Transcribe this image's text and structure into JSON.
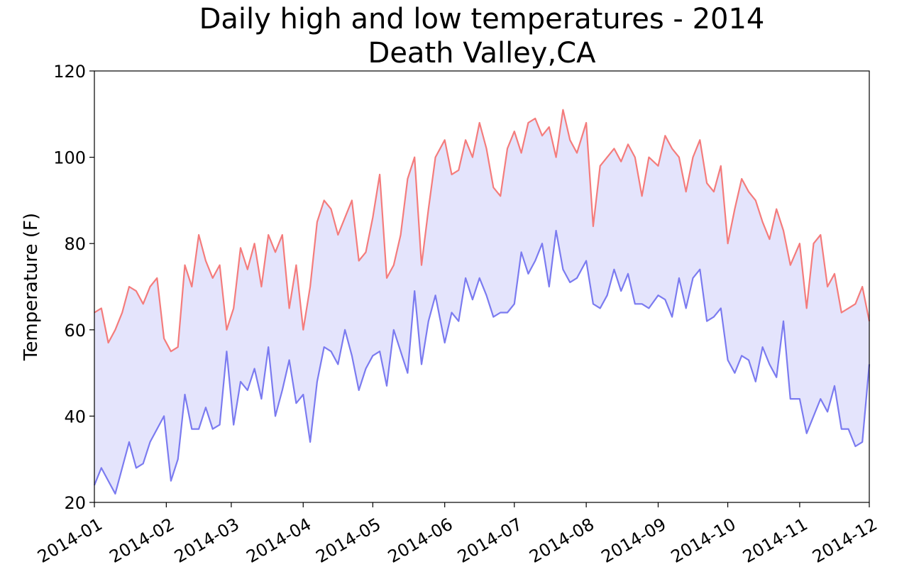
{
  "chart_data": {
    "type": "line",
    "title": "Daily high and low temperatures - 2014",
    "subtitle": "Death Valley,CA",
    "xlabel": "",
    "ylabel": "Temperature (F)",
    "ylim": [
      20,
      120
    ],
    "yticks": [
      20,
      40,
      60,
      80,
      100,
      120
    ],
    "x_start": "2014-01-01",
    "x_end": "2014-12-01",
    "xticks": [
      "2014-01",
      "2014-02",
      "2014-03",
      "2014-04",
      "2014-05",
      "2014-06",
      "2014-07",
      "2014-08",
      "2014-09",
      "2014-10",
      "2014-11",
      "2014-12"
    ],
    "grid": false,
    "fill_between": true,
    "colors": {
      "high": "#f47c7c",
      "low": "#7b7bf0",
      "fill": "#e4e4fc",
      "axes": "#000000"
    },
    "x": [
      "2014-01-01",
      "2014-01-04",
      "2014-01-07",
      "2014-01-10",
      "2014-01-13",
      "2014-01-16",
      "2014-01-19",
      "2014-01-22",
      "2014-01-25",
      "2014-01-28",
      "2014-01-31",
      "2014-02-03",
      "2014-02-06",
      "2014-02-09",
      "2014-02-12",
      "2014-02-15",
      "2014-02-18",
      "2014-02-21",
      "2014-02-24",
      "2014-02-27",
      "2014-03-02",
      "2014-03-05",
      "2014-03-08",
      "2014-03-11",
      "2014-03-14",
      "2014-03-17",
      "2014-03-20",
      "2014-03-23",
      "2014-03-26",
      "2014-03-29",
      "2014-04-01",
      "2014-04-04",
      "2014-04-07",
      "2014-04-10",
      "2014-04-13",
      "2014-04-16",
      "2014-04-19",
      "2014-04-22",
      "2014-04-25",
      "2014-04-28",
      "2014-05-01",
      "2014-05-04",
      "2014-05-07",
      "2014-05-10",
      "2014-05-13",
      "2014-05-16",
      "2014-05-19",
      "2014-05-22",
      "2014-05-25",
      "2014-05-28",
      "2014-06-01",
      "2014-06-04",
      "2014-06-07",
      "2014-06-10",
      "2014-06-13",
      "2014-06-16",
      "2014-06-19",
      "2014-06-22",
      "2014-06-25",
      "2014-06-28",
      "2014-07-01",
      "2014-07-04",
      "2014-07-07",
      "2014-07-10",
      "2014-07-13",
      "2014-07-16",
      "2014-07-19",
      "2014-07-22",
      "2014-07-25",
      "2014-07-28",
      "2014-08-01",
      "2014-08-04",
      "2014-08-07",
      "2014-08-10",
      "2014-08-13",
      "2014-08-16",
      "2014-08-19",
      "2014-08-22",
      "2014-08-25",
      "2014-08-28",
      "2014-09-01",
      "2014-09-04",
      "2014-09-07",
      "2014-09-10",
      "2014-09-13",
      "2014-09-16",
      "2014-09-19",
      "2014-09-22",
      "2014-09-25",
      "2014-09-28",
      "2014-10-01",
      "2014-10-04",
      "2014-10-07",
      "2014-10-10",
      "2014-10-13",
      "2014-10-16",
      "2014-10-19",
      "2014-10-22",
      "2014-10-25",
      "2014-10-28",
      "2014-11-01",
      "2014-11-04",
      "2014-11-07",
      "2014-11-10",
      "2014-11-13",
      "2014-11-16",
      "2014-11-19",
      "2014-11-22",
      "2014-11-25",
      "2014-11-28",
      "2014-12-01"
    ],
    "series": [
      {
        "name": "",
        "color": "#f47c7c",
        "values": [
          64,
          65,
          57,
          60,
          64,
          70,
          69,
          66,
          70,
          72,
          58,
          55,
          56,
          75,
          70,
          82,
          76,
          72,
          75,
          60,
          65,
          79,
          74,
          80,
          70,
          82,
          78,
          82,
          65,
          75,
          60,
          70,
          85,
          90,
          88,
          82,
          86,
          90,
          76,
          78,
          86,
          96,
          72,
          75,
          82,
          95,
          100,
          75,
          88,
          100,
          104,
          96,
          97,
          104,
          100,
          108,
          102,
          93,
          91,
          102,
          106,
          101,
          108,
          109,
          105,
          107,
          100,
          111,
          104,
          101,
          108,
          84,
          98,
          100,
          102,
          99,
          103,
          100,
          91,
          100,
          98,
          105,
          102,
          100,
          92,
          100,
          104,
          94,
          92,
          98,
          80,
          88,
          95,
          92,
          90,
          85,
          81,
          88,
          83,
          75,
          80,
          65,
          80,
          82,
          70,
          73,
          64,
          65,
          66,
          70,
          62
        ]
      },
      {
        "name": "",
        "color": "#7b7bf0",
        "values": [
          24,
          28,
          25,
          22,
          28,
          34,
          28,
          29,
          34,
          37,
          40,
          25,
          30,
          45,
          37,
          37,
          42,
          37,
          38,
          55,
          38,
          48,
          46,
          51,
          44,
          56,
          40,
          46,
          53,
          43,
          45,
          34,
          48,
          56,
          55,
          52,
          60,
          54,
          46,
          51,
          54,
          55,
          47,
          60,
          55,
          50,
          69,
          52,
          62,
          68,
          57,
          64,
          62,
          72,
          67,
          72,
          68,
          63,
          64,
          64,
          66,
          78,
          73,
          76,
          80,
          70,
          83,
          74,
          71,
          72,
          76,
          66,
          65,
          68,
          74,
          69,
          73,
          66,
          66,
          65,
          68,
          67,
          63,
          72,
          65,
          72,
          74,
          62,
          63,
          65,
          53,
          50,
          54,
          53,
          48,
          56,
          52,
          49,
          62,
          44,
          44,
          36,
          40,
          44,
          41,
          47,
          37,
          37,
          33,
          34,
          52
        ]
      }
    ]
  }
}
